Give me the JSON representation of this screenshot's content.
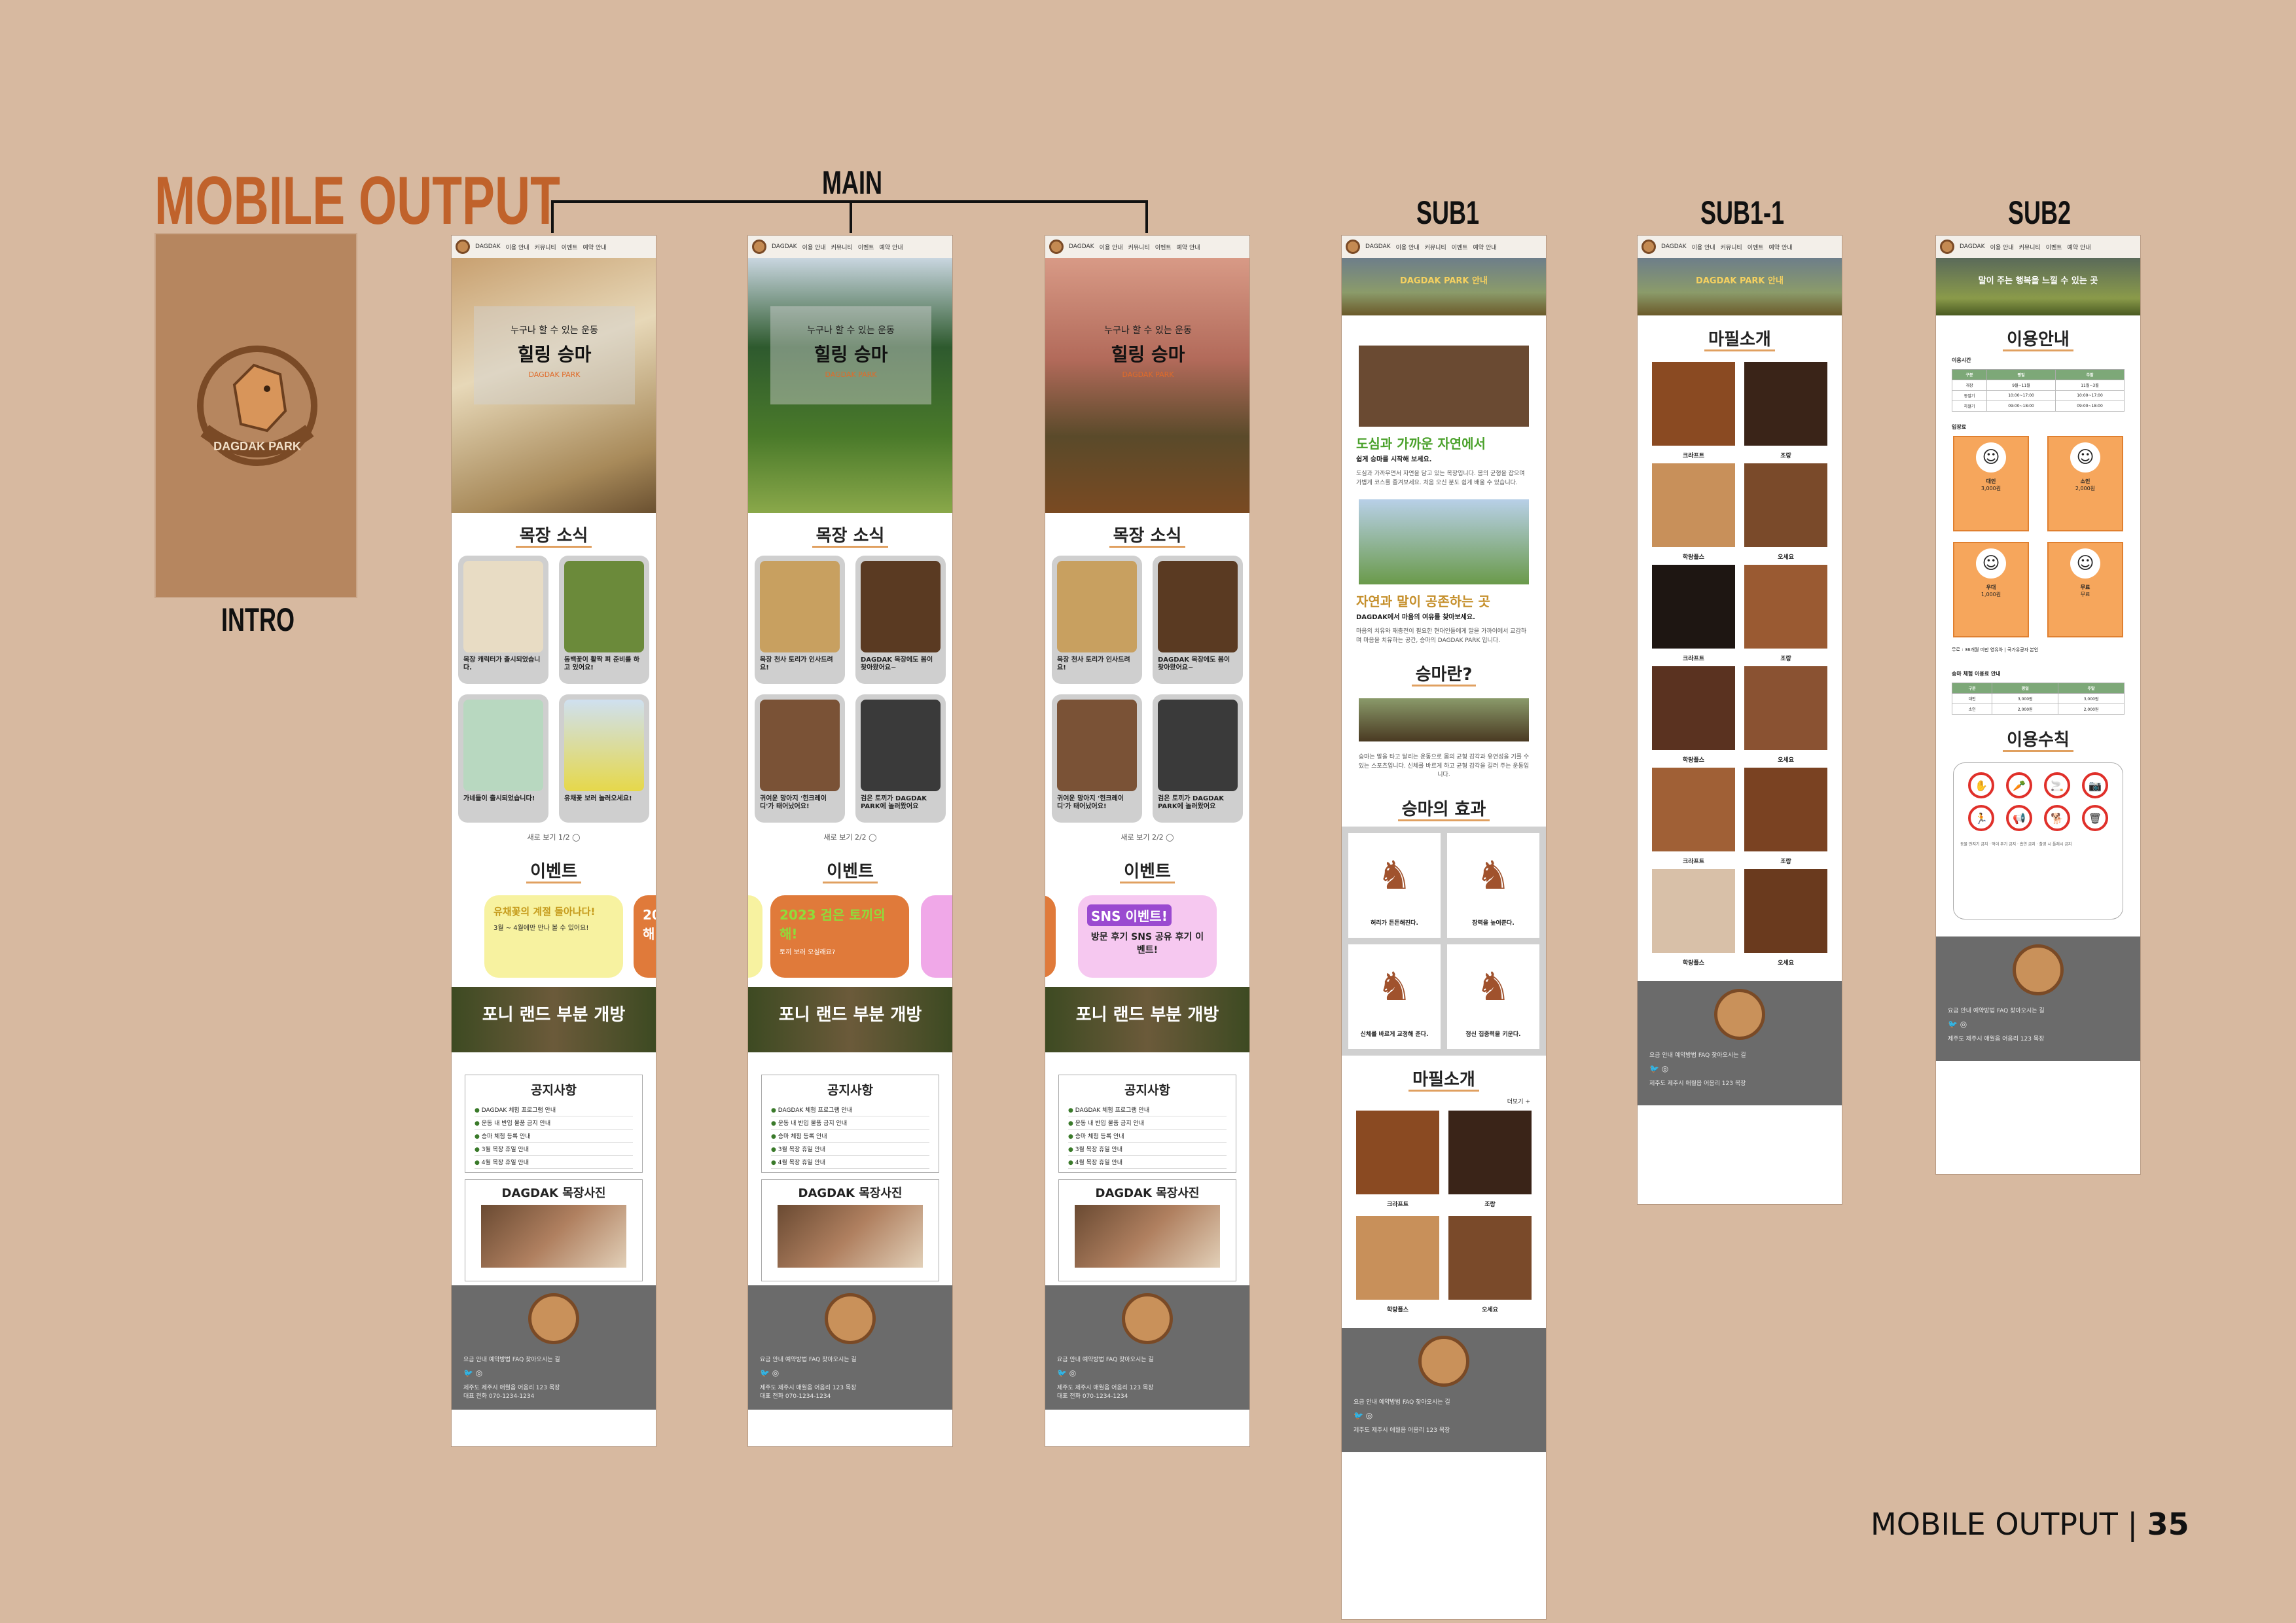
{
  "page": {
    "title": "MOBILE OUTPUT",
    "footer_label": "MOBILE OUTPUT",
    "page_number": "35"
  },
  "columns": {
    "intro": "INTRO",
    "main": "MAIN",
    "sub1": "SUB1",
    "sub1_1": "SUB1-1",
    "sub2": "SUB2"
  },
  "intro": {
    "logo_text": "DAGDAK PARK"
  },
  "nav": {
    "brand": "DAGDAK",
    "items": [
      "이용 안내",
      "커뮤니티",
      "이벤트",
      "예약 안내"
    ]
  },
  "hero": {
    "subtitle": "누구나 할 수 있는 운동",
    "title": "힐링 승마",
    "tag": "DAGDAK PARK"
  },
  "news": {
    "title": "목장 소식",
    "more_1": "새로 보기 1/2 ◯",
    "more_2": "새로 보기 2/2 ◯",
    "set1": [
      "목장 캐릭터가 출시되었습니다.",
      "동백꽃이 활짝 펴 준비를 하고 있어요!",
      "가네들이 출시되었습니다!",
      "유채꽃 보러 놀러오세요!"
    ],
    "set2": [
      "목장 천사 토리가 인사드려요!",
      "DAGDAK 목장에도 봄이 찾아왔어요~",
      "귀여운 망아지 '힌크레이디'가 태어났어요!",
      "검은 토끼가 DAGDAK PARK에 놀러왔어요"
    ]
  },
  "events": {
    "title": "이벤트",
    "items": [
      {
        "head": "유채꽃의 계절 돌아나다!",
        "sub": "3월 ~ 4월에만 만나 볼 수 있어요!"
      },
      {
        "head": "2023 검은 토끼의 해!",
        "sub": "토끼 보러 오실래요?"
      },
      {
        "head": "SNS 이벤트!",
        "sub": "방문 후기 SNS 공유 후기 이벤트!"
      }
    ]
  },
  "banner": {
    "title": "포니 랜드 부분 개방"
  },
  "notice": {
    "title": "공지사항",
    "items": [
      "DAGDAK 체험 프로그램 안내",
      "운동 내 반입 물품 금지 안내",
      "승마 체험 등록 안내",
      "3월 목장 휴일 안내",
      "4월 목장 휴일 안내"
    ]
  },
  "photos": {
    "title": "DAGDAK 목장사진"
  },
  "footer": {
    "links": "요금 안내   예약방법   FAQ   찾아오시는 길",
    "social": "🐦 ◎",
    "address": "제주도 제주시 애월읍 어음리 123 목장",
    "phone": "대표 전화 070-1234-1234"
  },
  "sub1": {
    "hero": "DAGDAK PARK 안내",
    "h1": "도심과 가까운 자연에서",
    "h1_sub": "쉽게 승마를 시작해 보세요.",
    "p1": "도심과 가까우면서 자연을 담고 있는 목장입니다. 몸의 균형을 잡으며 가볍게 코스를 즐겨보세요. 처음 오신 분도 쉽게 배울 수 있습니다.",
    "h2": "자연과 말이 공존하는 곳",
    "h2_sub": "DAGDAK에서 마음의 여유를 찾아보세요.",
    "p2": "마음의 치유와 재충전이 필요한 현대인들에게 말을 가까이에서 교감하며 마음을 치유하는 공간, 승마의 DAGDAK PARK 입니다.",
    "h3": "승마란?",
    "p3": "승마는 말을 타고 달리는 운동으로 몸의 균형 감각과 유연성을 기를 수 있는 스포츠입니다. 신체를 바르게 하고 균형 감각을 길러 주는 운동입니다.",
    "h4": "승마의 효과",
    "effects": [
      "허리가 튼튼해진다.",
      "장력을 높여준다.",
      "신체를 바르게 교정해 준다.",
      "정신 집중력을 키운다."
    ],
    "h5": "마필소개",
    "more": "더보기 +",
    "horses": [
      "크라프트",
      "조랑",
      "학랑플스",
      "오세요"
    ]
  },
  "sub1_1": {
    "hero": "DAGDAK PARK 안내",
    "title": "마필소개",
    "horses": [
      "크라프트",
      "조랑",
      "학랑플스",
      "오세요",
      "크라프트",
      "조랑",
      "학랑플스",
      "오세요",
      "크라프트",
      "조랑",
      "학랑플스",
      "오세요"
    ]
  },
  "sub2": {
    "hero": "말이 주는 행복을 느낄 수 있는 곳",
    "title": "이용안내",
    "hours_label": "이용시간",
    "hours_header": [
      "구분",
      "평일",
      "주말"
    ],
    "hours_rows": [
      [
        "개장",
        "9월~11월",
        "11월~3월"
      ],
      [
        "동절기",
        "10:00~17:00",
        "10:00~17:00"
      ],
      [
        "하절기",
        "09:00~18:00",
        "09:00~18:00"
      ]
    ],
    "fee_label": "입장료",
    "fees": [
      {
        "who": "대인",
        "price": "3,000원"
      },
      {
        "who": "소인",
        "price": "2,000원"
      },
      {
        "who": "우대",
        "price": "1,000원"
      },
      {
        "who": "무료",
        "price": "무료"
      }
    ],
    "fee_note": "무료 : 36개월 미만 영유아 | 국가유공자 본인",
    "ride_label": "승마 체험 이용료 안내",
    "rules_title": "이용수칙",
    "rules_note": "동물 만지기 금지 · 먹이 주기 금지 · 흡연 금지 · 촬영 시 플래시 금지"
  }
}
